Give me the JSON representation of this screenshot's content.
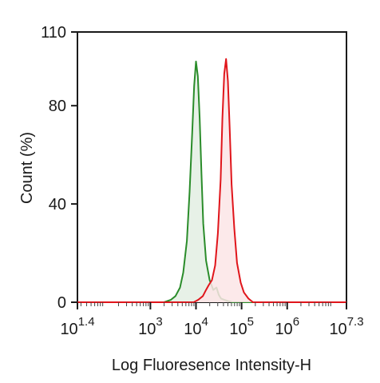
{
  "chart_data": {
    "type": "area",
    "title": "",
    "xlabel": "Log Fluoresence Intensity-H",
    "ylabel": "Count  (%)",
    "xscale": "log",
    "xlim": [
      1.4,
      7.3
    ],
    "ylim": [
      0,
      110
    ],
    "grid": false,
    "legend": "none",
    "y_ticks": [
      "0",
      "40",
      "80",
      "110"
    ],
    "y_tick_values": [
      0,
      40,
      80,
      110
    ],
    "x_ticks": [
      {
        "base": "10",
        "exp": "1.4",
        "value": 1.4
      },
      {
        "base": "10",
        "exp": "3",
        "value": 3
      },
      {
        "base": "10",
        "exp": "4",
        "value": 4
      },
      {
        "base": "10",
        "exp": "5",
        "value": 5
      },
      {
        "base": "10",
        "exp": "6",
        "value": 6
      },
      {
        "base": "10",
        "exp": "7.3",
        "value": 7.3
      }
    ],
    "series": [
      {
        "color": "#2a8c2a",
        "fill": "#e3efe3",
        "x": [
          1.4,
          3.3,
          3.45,
          3.55,
          3.65,
          3.72,
          3.8,
          3.86,
          3.92,
          3.96,
          4.0,
          4.04,
          4.08,
          4.12,
          4.16,
          4.22,
          4.3,
          4.38,
          4.45,
          4.5,
          4.55,
          4.62,
          4.7,
          4.8,
          7.3
        ],
        "y": [
          0,
          0,
          1,
          2.5,
          6,
          12,
          25,
          45,
          70,
          88,
          98,
          92,
          75,
          52,
          32,
          17,
          9,
          5,
          6,
          3,
          1.5,
          1,
          0.5,
          0,
          0
        ]
      },
      {
        "color": "#e0151b",
        "fill": "#fbe5e6",
        "x": [
          1.4,
          3.95,
          4.05,
          4.15,
          4.22,
          4.28,
          4.35,
          4.42,
          4.48,
          4.54,
          4.58,
          4.62,
          4.66,
          4.7,
          4.74,
          4.78,
          4.84,
          4.9,
          4.98,
          5.05,
          5.15,
          5.25,
          7.3
        ],
        "y": [
          0,
          0,
          1,
          2.5,
          5,
          7,
          9,
          15,
          28,
          50,
          75,
          93,
          99,
          90,
          70,
          48,
          30,
          16,
          8,
          4,
          1.5,
          0,
          0
        ]
      }
    ]
  }
}
